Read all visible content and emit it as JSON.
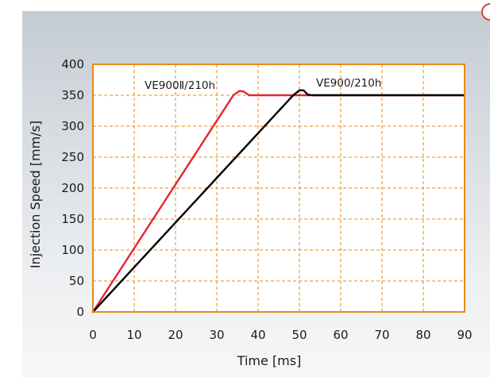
{
  "chart_data": {
    "type": "line",
    "title": "",
    "xlabel": "Time [ms]",
    "ylabel": "Injection Speed [mm/s]",
    "xlim": [
      0,
      90
    ],
    "ylim": [
      0,
      400
    ],
    "xticks": [
      0,
      10,
      20,
      30,
      40,
      50,
      60,
      70,
      80,
      90
    ],
    "yticks": [
      0,
      50,
      100,
      150,
      200,
      250,
      300,
      350,
      400
    ],
    "grid": true,
    "grid_style": "dashed",
    "plot_background": "#ffffff",
    "frame_color": "#e8891a",
    "series": [
      {
        "name": "VE900Ⅱ/210h",
        "color": "#e8232f",
        "points": [
          [
            0,
            0
          ],
          [
            34,
            350
          ],
          [
            35.5,
            357
          ],
          [
            36.5,
            356
          ],
          [
            37.8,
            350
          ],
          [
            90,
            350
          ]
        ]
      },
      {
        "name": "VE900/210h",
        "color": "#000000",
        "points": [
          [
            0,
            0
          ],
          [
            48.5,
            350
          ],
          [
            50,
            358
          ],
          [
            51,
            358
          ],
          [
            52,
            351
          ],
          [
            53,
            350
          ],
          [
            90,
            350
          ]
        ]
      }
    ]
  }
}
